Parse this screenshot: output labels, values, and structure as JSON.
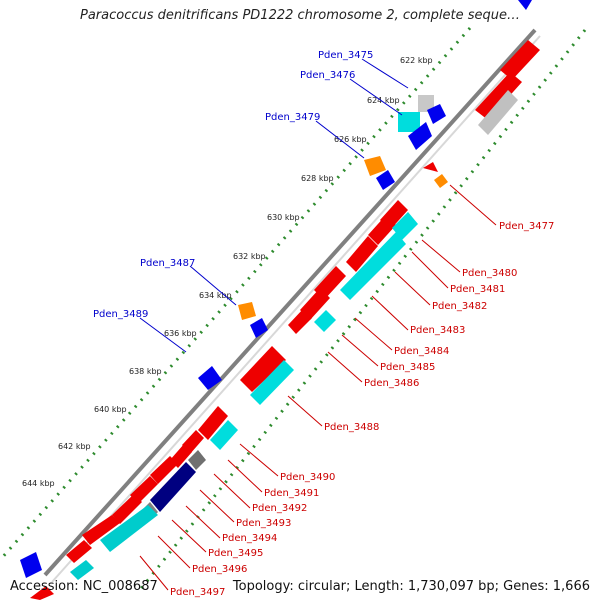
{
  "title": "Paracoccus denitrificans PD1222 chromosome 2, complete seque…",
  "footer": {
    "accession": "Accession: NC_008687",
    "topology": "Topology: circular; Length: 1,730,097 bp; Genes: 1,666"
  },
  "colors": {
    "forward_gene": "#ff0000",
    "reverse_gene": "#0000ff",
    "rna": "#00e5ee",
    "pseudo": "#b0b0b0",
    "misc": "#ff8c00",
    "dark": "#000080",
    "tick": "#008000",
    "label_forward": "#cc0000",
    "label_reverse": "#0000cc",
    "backbone": "#808080"
  },
  "scale_ticks": [
    "622 kbp",
    "624 kbp",
    "626 kbp",
    "628 kbp",
    "630 kbp",
    "632 kbp",
    "634 kbp",
    "636 kbp",
    "638 kbp",
    "640 kbp",
    "642 kbp",
    "644 kbp"
  ],
  "left_labels": [
    "Pden_3475",
    "Pden_3476",
    "Pden_3479",
    "Pden_3487",
    "Pden_3489"
  ],
  "right_labels": [
    "Pden_3477",
    "Pden_3480",
    "Pden_3481",
    "Pden_3482",
    "Pden_3483",
    "Pden_3484",
    "Pden_3485",
    "Pden_3486",
    "Pden_3488",
    "Pden_3490",
    "Pden_3491",
    "Pden_3492",
    "Pden_3493",
    "Pden_3494",
    "Pden_3495",
    "Pden_3496",
    "Pden_3497"
  ]
}
